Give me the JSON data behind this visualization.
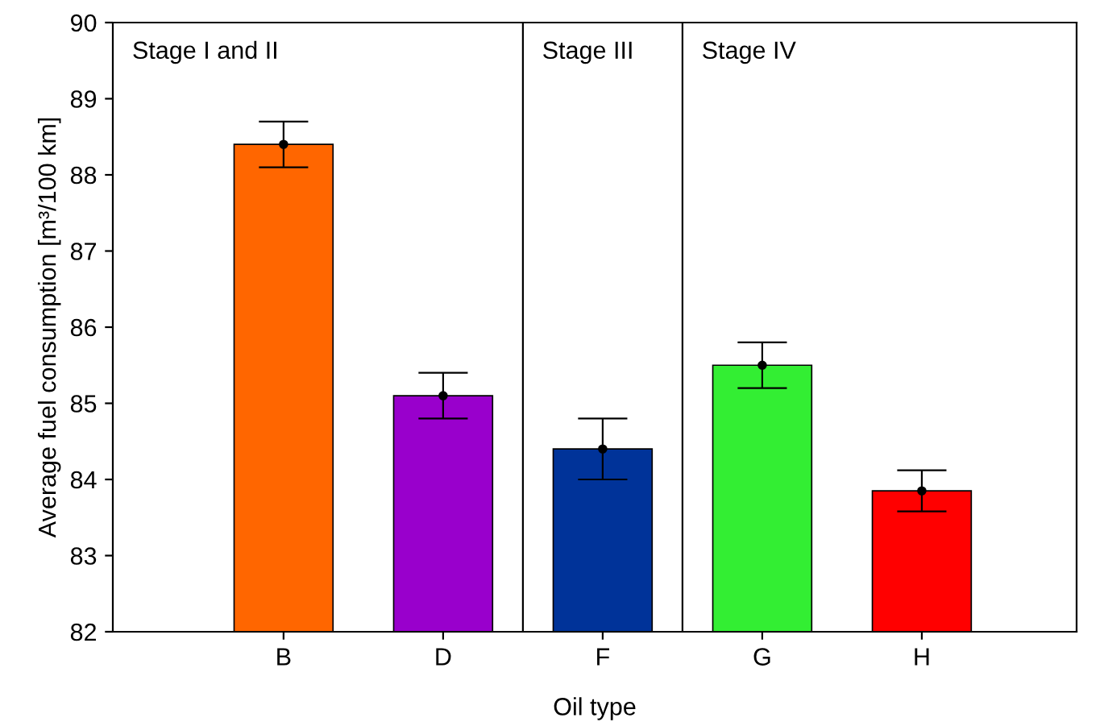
{
  "chart_data": {
    "type": "bar",
    "xlabel": "Oil type",
    "ylabel": "Average fuel consumption [m³/100 km]",
    "categories": [
      "B",
      "D",
      "F",
      "G",
      "H"
    ],
    "series": [
      {
        "values": [
          88.4,
          85.1,
          84.4,
          85.5,
          83.85
        ],
        "colors": [
          "#ff6600",
          "#9900cc",
          "#003399",
          "#33ee33",
          "#ff0000"
        ],
        "errors": [
          0.3,
          0.3,
          0.4,
          0.3,
          0.27
        ]
      },
      {
        "type": "scatter",
        "x": [
          "B",
          "D",
          "F",
          "G",
          "H"
        ],
        "values": [
          88.4,
          85.1,
          84.4,
          85.5,
          83.85
        ],
        "color": "#000000"
      }
    ],
    "marker": "circle",
    "ylim": [
      82,
      90
    ],
    "yticks": [
      82,
      83,
      84,
      85,
      86,
      87,
      88,
      89,
      90
    ],
    "annotations": [
      "Stage I and II",
      "Stage III",
      "Stage IV"
    ],
    "grid": false,
    "legend": false
  }
}
